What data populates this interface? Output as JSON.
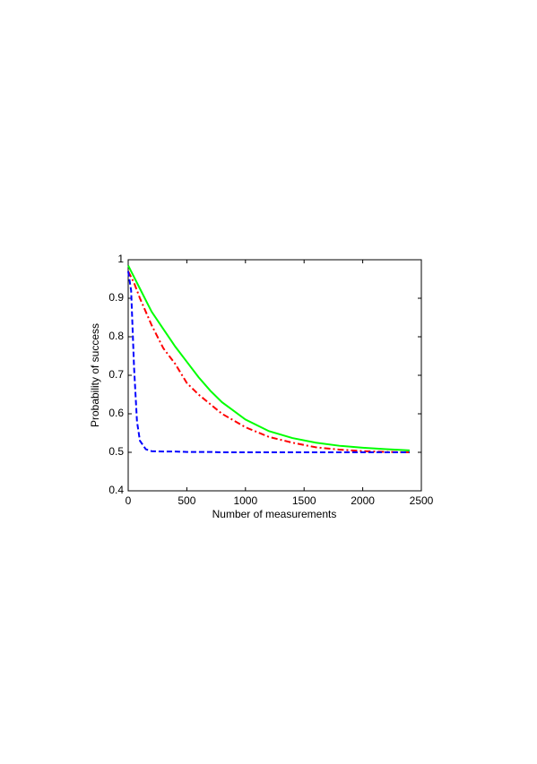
{
  "chart_data": {
    "type": "line",
    "x_label": "Number of measurements",
    "y_label": "Probability of success",
    "x": [
      0,
      25,
      50,
      75,
      100,
      150,
      200,
      300,
      400,
      500,
      600,
      700,
      800,
      1000,
      1200,
      1400,
      1600,
      1800,
      2000,
      2200,
      2400
    ],
    "series": [
      {
        "color": "#00ff00",
        "style": "solid",
        "values": [
          0.985,
          0.97,
          0.955,
          0.94,
          0.925,
          0.895,
          0.865,
          0.82,
          0.775,
          0.735,
          0.695,
          0.66,
          0.63,
          0.585,
          0.555,
          0.537,
          0.525,
          0.517,
          0.512,
          0.508,
          0.505
        ]
      },
      {
        "color": "#ff0000",
        "style": "dashdot",
        "values": [
          0.97,
          0.955,
          0.94,
          0.92,
          0.9,
          0.865,
          0.83,
          0.77,
          0.73,
          0.68,
          0.65,
          0.625,
          0.6,
          0.565,
          0.54,
          0.525,
          0.513,
          0.507,
          0.503,
          0.501,
          0.5
        ]
      },
      {
        "color": "#0000ff",
        "style": "dashed",
        "values": [
          0.97,
          0.92,
          0.72,
          0.58,
          0.53,
          0.508,
          0.503,
          0.502,
          0.502,
          0.501,
          0.501,
          0.501,
          0.5,
          0.5,
          0.5,
          0.5,
          0.5,
          0.5,
          0.5,
          0.5,
          0.5
        ]
      }
    ],
    "xlim": [
      0,
      2500
    ],
    "xticks": [
      0,
      500,
      1000,
      1500,
      2000,
      2500
    ],
    "ylim": [
      0.4,
      1
    ],
    "yticks": [
      0.4,
      0.5,
      0.6,
      0.7,
      0.8,
      0.9,
      1
    ],
    "grid": false
  }
}
